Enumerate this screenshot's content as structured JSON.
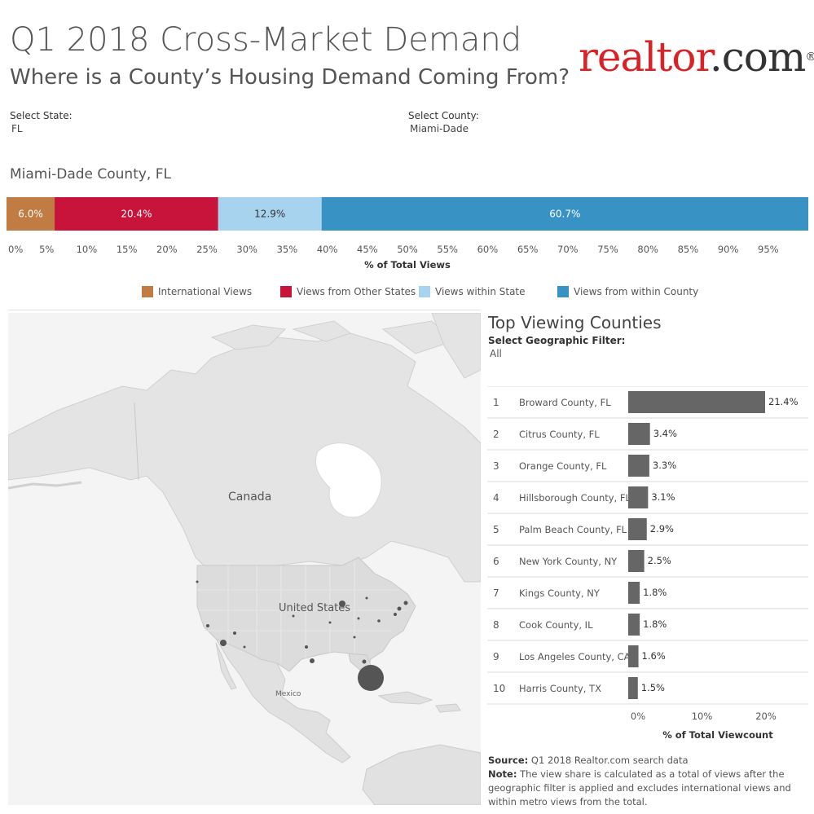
{
  "header": {
    "title": "Q1 2018 Cross-Market Demand",
    "subtitle": "Where is a County’s Housing Demand Coming From?",
    "logo_text": "realtor.com",
    "logo_colors": {
      "realtor": "#d92228",
      "com": "#333333"
    }
  },
  "filters": {
    "state_label": "Select State:",
    "state_value": "FL",
    "county_label": "Select County:",
    "county_value": "Miami-Dade"
  },
  "county_title": "Miami-Dade County, FL",
  "map": {
    "labels": {
      "canada": "Canada",
      "us": "United States",
      "mexico": "Mexico"
    }
  },
  "ranking": {
    "title": "Top Viewing Counties",
    "geo_label": "Select Geographic Filter:",
    "geo_value": "All"
  },
  "footer": {
    "source_label": "Source:",
    "source_text": "Q1 2018 Realtor.com search data",
    "note_label": "Note:",
    "note_text": "The view share is calculated as a total of views after the geographic filter is applied and excludes international views and within metro views from the total."
  },
  "chart_data": [
    {
      "type": "bar",
      "orientation": "stacked-horizontal",
      "xlabel": "% of Total Views",
      "xlim": [
        0,
        100
      ],
      "ticks": [
        "0%",
        "5%",
        "10%",
        "15%",
        "20%",
        "25%",
        "30%",
        "35%",
        "40%",
        "45%",
        "50%",
        "55%",
        "60%",
        "65%",
        "70%",
        "75%",
        "80%",
        "85%",
        "90%",
        "95%"
      ],
      "series": [
        {
          "name": "International Views",
          "value": 6.0,
          "label": "6.0%",
          "color": "#c07c42"
        },
        {
          "name": "Views from Other States",
          "value": 20.4,
          "label": "20.4%",
          "color": "#c8133b"
        },
        {
          "name": "Views within State",
          "value": 12.9,
          "label": "12.9%",
          "color": "#a7d3ef"
        },
        {
          "name": "Views from within County",
          "value": 60.7,
          "label": "60.7%",
          "color": "#3893c4"
        }
      ],
      "legend_position": "bottom"
    },
    {
      "type": "bar",
      "orientation": "horizontal",
      "xlabel": "% of Total Viewcount",
      "ticks": [
        "0%",
        "10%",
        "20%"
      ],
      "xlim": [
        0,
        21.4
      ],
      "bar_color": "#666666",
      "rows": [
        {
          "rank": "1",
          "county": "Broward County, FL",
          "value": 21.4,
          "label": "21.4%"
        },
        {
          "rank": "2",
          "county": "Citrus County, FL",
          "value": 3.4,
          "label": "3.4%"
        },
        {
          "rank": "3",
          "county": "Orange County, FL",
          "value": 3.3,
          "label": "3.3%"
        },
        {
          "rank": "4",
          "county": "Hillsborough County, FL",
          "value": 3.1,
          "label": "3.1%"
        },
        {
          "rank": "5",
          "county": "Palm Beach County, FL",
          "value": 2.9,
          "label": "2.9%"
        },
        {
          "rank": "6",
          "county": "New York County, NY",
          "value": 2.5,
          "label": "2.5%"
        },
        {
          "rank": "7",
          "county": "Kings County, NY",
          "value": 1.8,
          "label": "1.8%"
        },
        {
          "rank": "8",
          "county": "Cook County, IL",
          "value": 1.8,
          "label": "1.8%"
        },
        {
          "rank": "9",
          "county": "Los Angeles County, CA",
          "value": 1.6,
          "label": "1.6%"
        },
        {
          "rank": "10",
          "county": "Harris County, TX",
          "value": 1.5,
          "label": "1.5%"
        }
      ]
    }
  ]
}
